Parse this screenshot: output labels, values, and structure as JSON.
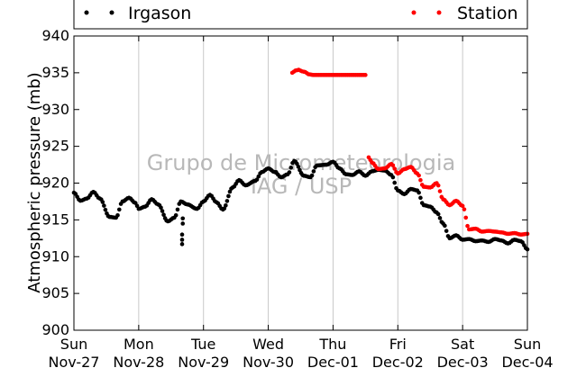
{
  "chart_data": {
    "type": "scatter",
    "title": "",
    "xlabel": "",
    "ylabel": "Atmospheric pressure (mb)",
    "ylim": [
      900,
      940
    ],
    "yticks": [
      900,
      905,
      910,
      915,
      920,
      925,
      930,
      935,
      940
    ],
    "xlim": [
      "2023-11-27",
      "2023-12-04"
    ],
    "xtick_labels": [
      [
        "Sun",
        "Nov-27"
      ],
      [
        "Mon",
        "Nov-28"
      ],
      [
        "Tue",
        "Nov-29"
      ],
      [
        "Wed",
        "Nov-30"
      ],
      [
        "Thu",
        "Dec-01"
      ],
      [
        "Fri",
        "Dec-02"
      ],
      [
        "Sat",
        "Dec-03"
      ],
      [
        "Sun",
        "Dec-04"
      ]
    ],
    "grid": "vertical",
    "legend_placement": "top",
    "watermark": [
      "Grupo de Micrometeorologia",
      "IAG / USP"
    ],
    "series": [
      {
        "name": "Irgason",
        "color": "#000000",
        "x_days": [
          0.0,
          0.1,
          0.2,
          0.3,
          0.4,
          0.55,
          0.65,
          0.75,
          0.85,
          0.95,
          1.0,
          1.1,
          1.2,
          1.3,
          1.45,
          1.55,
          1.65,
          1.75,
          1.9,
          2.0,
          2.1,
          2.2,
          2.3,
          2.45,
          2.55,
          2.65,
          2.8,
          2.9,
          3.0,
          3.1,
          3.2,
          3.3,
          3.4,
          3.55,
          3.65,
          3.75,
          3.9,
          4.0,
          4.1,
          4.2,
          4.3,
          4.4,
          4.5,
          4.6,
          4.7,
          4.8,
          4.9,
          5.0,
          5.1,
          5.2,
          5.3,
          5.4,
          5.5,
          5.6,
          5.7,
          5.8,
          5.9,
          6.0,
          6.1,
          6.2,
          6.3,
          6.4,
          6.5,
          6.6,
          6.7,
          6.8,
          6.9,
          7.0
        ],
        "y": [
          918.7,
          917.6,
          917.9,
          918.8,
          917.9,
          915.4,
          915.3,
          917.5,
          918.0,
          917.3,
          916.5,
          916.8,
          917.8,
          917.1,
          914.8,
          915.3,
          917.5,
          917.1,
          916.5,
          917.5,
          918.4,
          917.4,
          916.4,
          919.4,
          920.4,
          919.7,
          920.3,
          921.5,
          922.0,
          921.5,
          920.8,
          921.2,
          923.0,
          921.0,
          920.8,
          922.4,
          922.5,
          922.9,
          922.0,
          921.2,
          921.1,
          921.6,
          921.0,
          921.6,
          921.8,
          921.7,
          921.1,
          919.0,
          918.5,
          919.2,
          919.0,
          917.0,
          916.8,
          916.0,
          914.5,
          912.5,
          912.9,
          912.3,
          912.4,
          912.1,
          912.2,
          912.0,
          912.4,
          912.2,
          911.8,
          912.3,
          912.1,
          911.0
        ],
        "outliers": {
          "x_days": [
            1.67,
            1.67,
            1.67,
            1.68,
            1.68,
            3.12
          ],
          "y": [
            913.0,
            912.3,
            911.7,
            914.5,
            915.2,
            921.5
          ]
        }
      },
      {
        "name": "Station",
        "color": "#ff0000",
        "x_days": [
          3.37,
          3.42,
          3.47,
          3.52,
          3.57,
          3.62,
          3.7,
          3.8,
          3.9,
          4.0,
          4.1,
          4.2,
          4.3,
          4.4,
          4.5,
          4.55,
          4.6,
          4.7,
          4.8,
          4.9,
          5.0,
          5.1,
          5.2,
          5.3,
          5.4,
          5.5,
          5.6,
          5.7,
          5.8,
          5.9,
          6.0,
          6.1,
          6.2,
          6.3,
          6.4,
          6.5,
          6.6,
          6.7,
          6.8,
          6.9,
          7.0
        ],
        "y": [
          935.0,
          935.3,
          935.4,
          935.2,
          935.1,
          934.8,
          934.7,
          934.7,
          934.7,
          934.7,
          934.7,
          934.7,
          934.7,
          934.7,
          934.7,
          923.5,
          922.8,
          921.9,
          922.0,
          922.6,
          921.3,
          921.9,
          922.2,
          921.3,
          919.5,
          919.4,
          920.0,
          917.8,
          917.0,
          917.6,
          916.9,
          913.7,
          913.8,
          913.4,
          913.5,
          913.4,
          913.3,
          913.1,
          913.2,
          913.0,
          913.1
        ]
      }
    ]
  }
}
